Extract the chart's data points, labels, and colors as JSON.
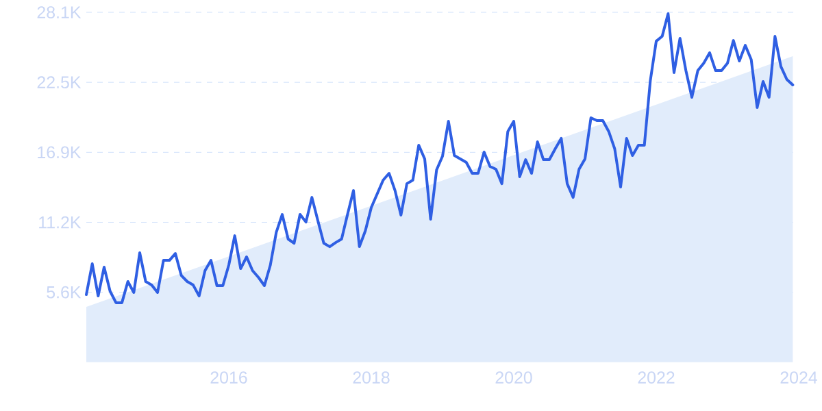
{
  "chart_data": {
    "type": "line",
    "x": [
      "2014-01",
      "2014-02",
      "2014-03",
      "2014-04",
      "2014-05",
      "2014-06",
      "2014-07",
      "2014-08",
      "2014-09",
      "2014-10",
      "2014-11",
      "2014-12",
      "2015-01",
      "2015-02",
      "2015-03",
      "2015-04",
      "2015-05",
      "2015-06",
      "2015-07",
      "2015-08",
      "2015-09",
      "2015-10",
      "2015-11",
      "2015-12",
      "2016-01",
      "2016-02",
      "2016-03",
      "2016-04",
      "2016-05",
      "2016-06",
      "2016-07",
      "2016-08",
      "2016-09",
      "2016-10",
      "2016-11",
      "2016-12",
      "2017-01",
      "2017-02",
      "2017-03",
      "2017-04",
      "2017-05",
      "2017-06",
      "2017-07",
      "2017-08",
      "2017-09",
      "2017-10",
      "2017-11",
      "2017-12",
      "2018-01",
      "2018-02",
      "2018-03",
      "2018-04",
      "2018-05",
      "2018-06",
      "2018-07",
      "2018-08",
      "2018-09",
      "2018-10",
      "2018-11",
      "2018-12",
      "2019-01",
      "2019-02",
      "2019-03",
      "2019-04",
      "2019-05",
      "2019-06",
      "2019-07",
      "2019-08",
      "2019-09",
      "2019-10",
      "2019-11",
      "2019-12",
      "2020-01",
      "2020-02",
      "2020-03",
      "2020-04",
      "2020-05",
      "2020-06",
      "2020-07",
      "2020-08",
      "2020-09",
      "2020-10",
      "2020-11",
      "2020-12",
      "2021-01",
      "2021-02",
      "2021-03",
      "2021-04",
      "2021-05",
      "2021-06",
      "2021-07",
      "2021-08",
      "2021-09",
      "2021-10",
      "2021-11",
      "2021-12",
      "2022-01",
      "2022-02",
      "2022-03",
      "2022-04",
      "2022-05",
      "2022-06",
      "2022-07",
      "2022-08",
      "2022-09",
      "2022-10",
      "2022-11",
      "2022-12",
      "2023-01",
      "2023-02",
      "2023-03",
      "2023-04",
      "2023-05",
      "2023-06",
      "2023-07",
      "2023-08",
      "2023-09",
      "2023-10",
      "2023-11",
      "2023-12"
    ],
    "series": [
      {
        "type": "area",
        "color": "#e1ecfb",
        "x": [
          "2014-01",
          "2023-12"
        ],
        "values": [
          4440,
          24580
        ]
      },
      {
        "color": "#2f5fe3",
        "values": [
          5430,
          7910,
          5320,
          7640,
          5710,
          4780,
          4780,
          6480,
          5600,
          8790,
          6480,
          6200,
          5600,
          8180,
          8180,
          8730,
          6970,
          6480,
          6200,
          5320,
          7360,
          8180,
          6150,
          6150,
          7800,
          10160,
          7520,
          8460,
          7360,
          6810,
          6150,
          7800,
          10440,
          11870,
          9890,
          9560,
          11870,
          11260,
          13240,
          11370,
          9560,
          9280,
          9610,
          9890,
          11870,
          13790,
          9280,
          10550,
          12420,
          13520,
          14620,
          15170,
          13790,
          11820,
          14340,
          14620,
          17430,
          16330,
          11490,
          15450,
          16550,
          19350,
          16600,
          16330,
          16050,
          15170,
          15170,
          16880,
          15720,
          15500,
          14340,
          18530,
          19350,
          14900,
          16270,
          15170,
          17700,
          16270,
          16270,
          17150,
          17980,
          14340,
          13240,
          15500,
          16330,
          19630,
          19410,
          19410,
          18530,
          17150,
          14070,
          17980,
          16600,
          17430,
          17430,
          22600,
          25780,
          26170,
          27990,
          23260,
          26010,
          23420,
          21280,
          23420,
          24020,
          24850,
          23420,
          23420,
          24020,
          25840,
          24190,
          25450,
          24300,
          20450,
          22540,
          21280,
          26170,
          23750,
          22710,
          22270
        ]
      }
    ],
    "xlim": [
      "2014-01",
      "2024-01"
    ],
    "xticks": [
      "2016",
      "2018",
      "2020",
      "2022",
      "2024"
    ],
    "ylim": [
      0,
      28100
    ],
    "yticks": [
      {
        "value": 5620,
        "label": "5.6K"
      },
      {
        "value": 11240,
        "label": "11.2K"
      },
      {
        "value": 16860,
        "label": "16.9K"
      },
      {
        "value": 22480,
        "label": "22.5K"
      },
      {
        "value": 28100,
        "label": "28.1K"
      }
    ],
    "grid": "y"
  }
}
